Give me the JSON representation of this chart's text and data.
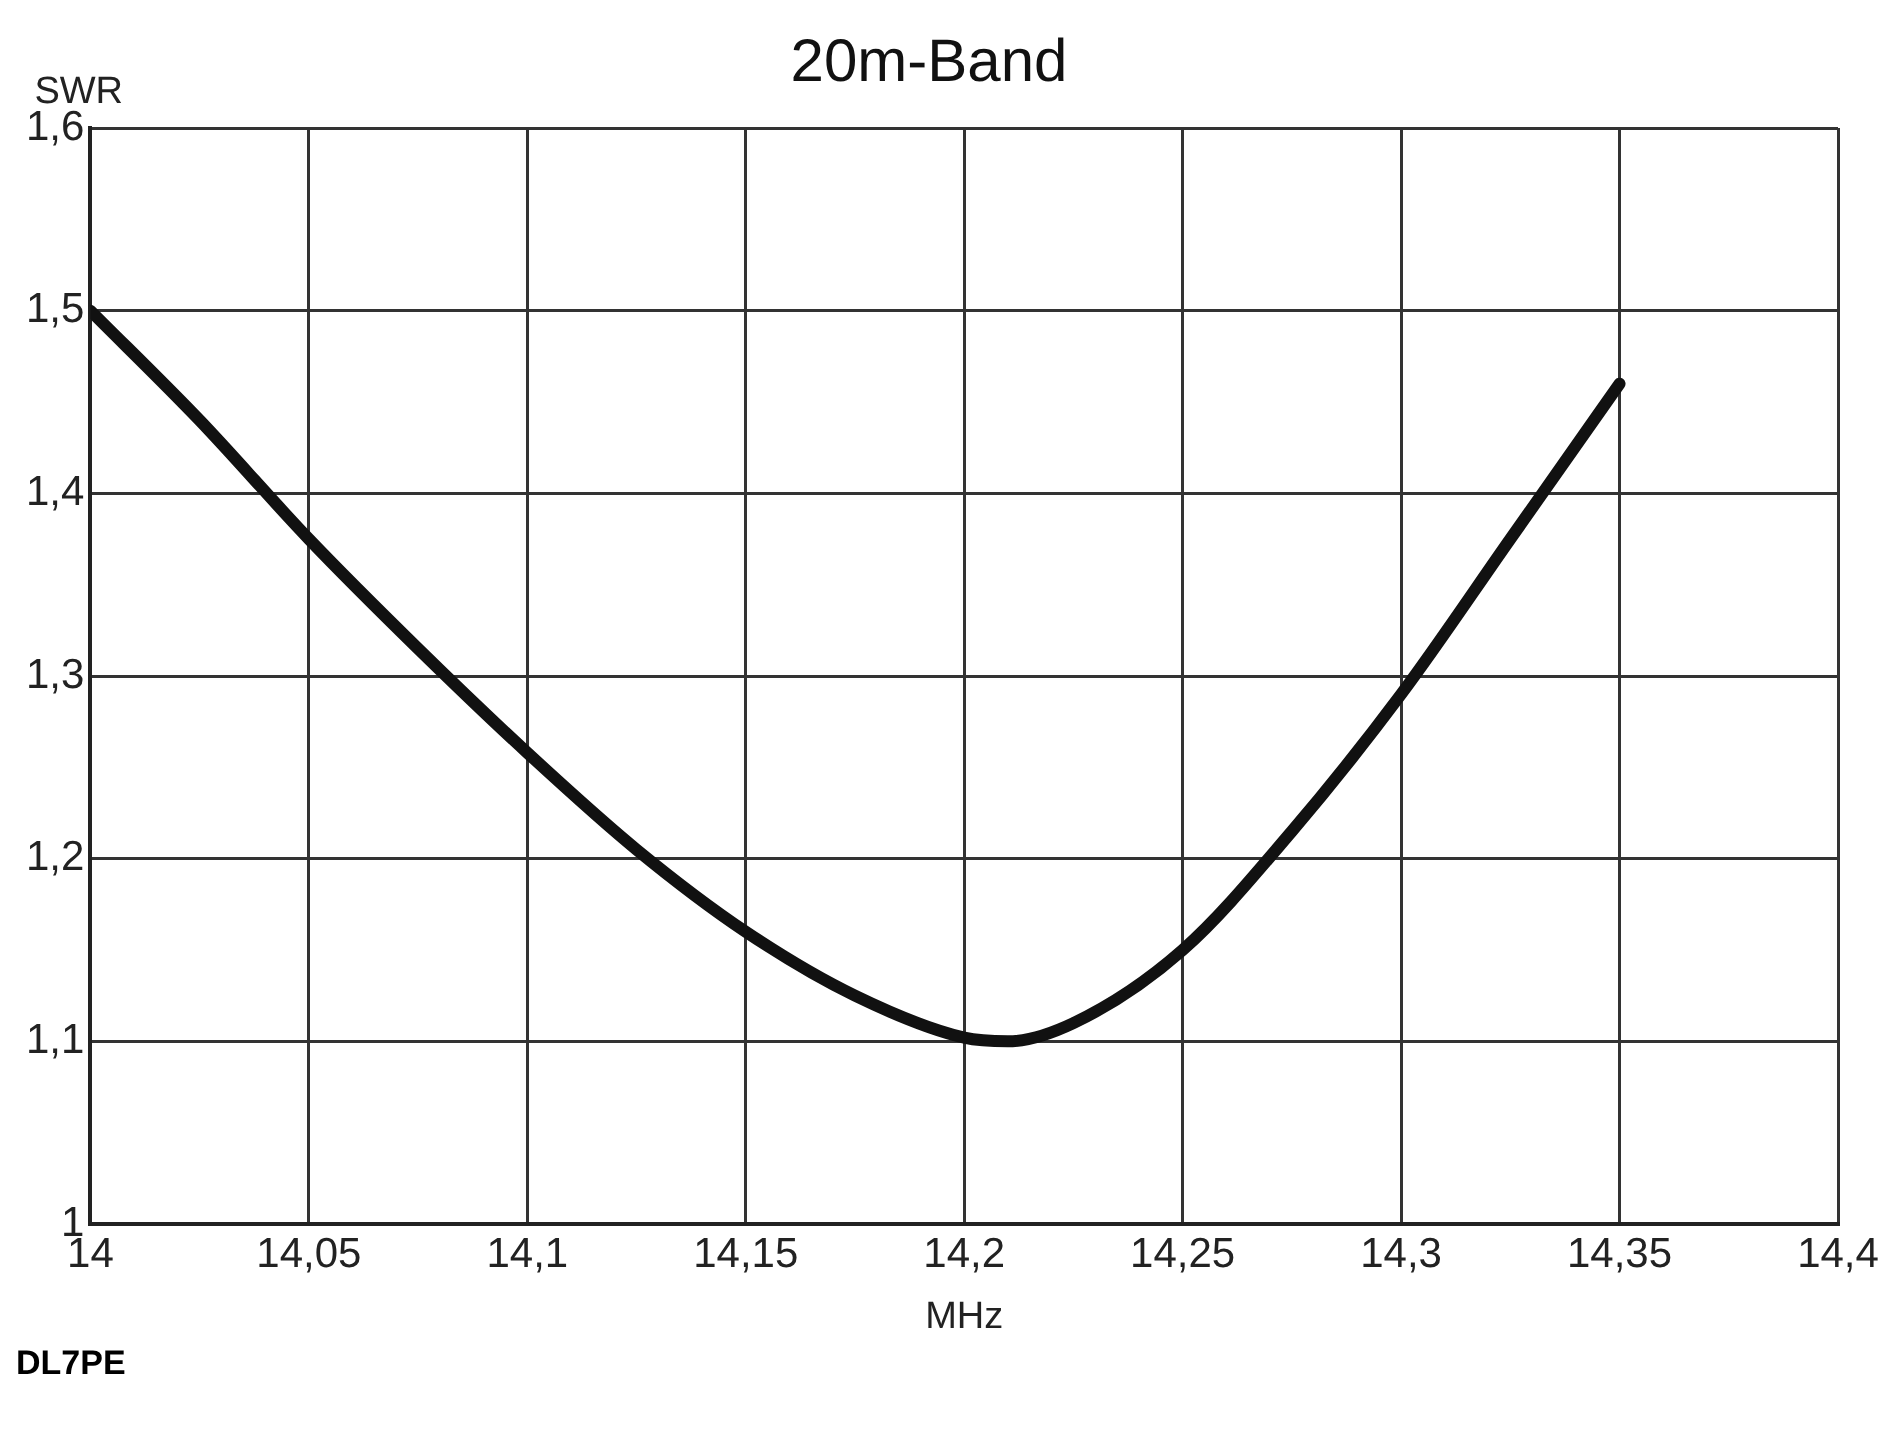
{
  "chart_data": {
    "type": "line",
    "title": "20m-Band",
    "xlabel": "MHz",
    "ylabel": "SWR",
    "annotations": [
      "DL7PE"
    ],
    "x": [
      14,
      14.025,
      14.05,
      14.075,
      14.1,
      14.125,
      14.15,
      14.175,
      14.2,
      14.21,
      14.225,
      14.25,
      14.275,
      14.3,
      14.325,
      14.35
    ],
    "series": [
      {
        "color": "#111111",
        "values": [
          1.5,
          1.44,
          1.375,
          1.315,
          1.258,
          1.205,
          1.16,
          1.125,
          1.102,
          1.1,
          1.11,
          1.15,
          1.215,
          1.29,
          1.375,
          1.46
        ]
      }
    ],
    "xlim": [
      14,
      14.4
    ],
    "xticks": [
      14,
      {
        "value": 14.05,
        "label": "14,05"
      },
      {
        "value": 14.1,
        "label": "14,1"
      },
      {
        "value": 14.15,
        "label": "14,15"
      },
      {
        "value": 14.2,
        "label": "14,2"
      },
      {
        "value": 14.25,
        "label": "14,25"
      },
      {
        "value": 14.3,
        "label": "14,3"
      },
      {
        "value": 14.35,
        "label": "14,35"
      },
      {
        "value": 14.4,
        "label": "14,4"
      }
    ],
    "ylim": [
      1,
      1.6
    ],
    "yticks": [
      1,
      {
        "value": 1.1,
        "label": "1,1"
      },
      {
        "value": 1.2,
        "label": "1,2"
      },
      {
        "value": 1.3,
        "label": "1,3"
      },
      {
        "value": 1.4,
        "label": "1,4"
      },
      {
        "value": 1.5,
        "label": "1,5"
      },
      {
        "value": 1.6,
        "label": "1,6"
      }
    ],
    "grid": true,
    "legend": false,
    "marker": "none",
    "line_style": "solid"
  }
}
